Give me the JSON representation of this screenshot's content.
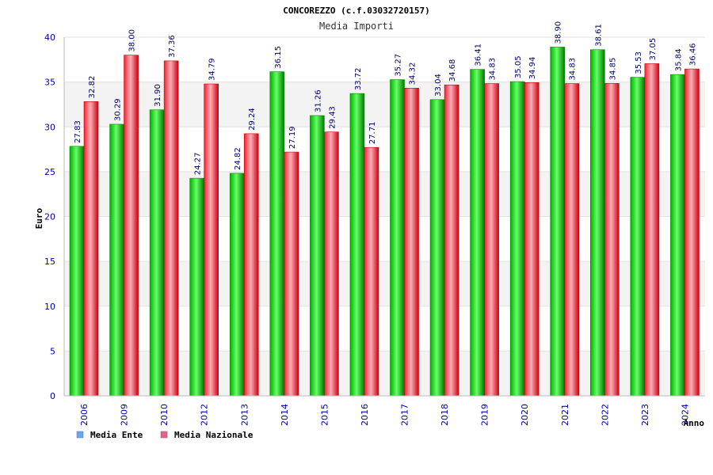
{
  "chart_data": {
    "type": "bar",
    "title": "CONCOREZZO (c.f.03032720157)",
    "subtitle": "Media Importi",
    "xlabel": "Anno",
    "ylabel": "Euro",
    "ylim": [
      0,
      40
    ],
    "yticks": [
      "0",
      "5",
      "10",
      "15",
      "20",
      "25",
      "30",
      "35",
      "40"
    ],
    "categories": [
      "2006",
      "2009",
      "2010",
      "2012",
      "2013",
      "2014",
      "2015",
      "2016",
      "2017",
      "2018",
      "2019",
      "2020",
      "2021",
      "2022",
      "2023",
      "2024"
    ],
    "series": [
      {
        "name": "Media Ente",
        "values": [
          27.83,
          30.29,
          31.9,
          24.27,
          24.82,
          36.15,
          31.26,
          33.72,
          35.27,
          33.04,
          36.41,
          35.05,
          38.9,
          38.61,
          35.53,
          35.84
        ],
        "labels": [
          "27.83",
          "30.29",
          "31.90",
          "24.27",
          "24.82",
          "36.15",
          "31.26",
          "33.72",
          "35.27",
          "33.04",
          "36.41",
          "35.05",
          "38.90",
          "38.61",
          "35.53",
          "35.84"
        ]
      },
      {
        "name": "Media Nazionale",
        "values": [
          32.82,
          38.0,
          37.36,
          34.79,
          29.24,
          27.19,
          29.43,
          27.71,
          34.32,
          34.68,
          34.83,
          34.94,
          34.83,
          34.85,
          37.05,
          36.46
        ],
        "labels": [
          "32.82",
          "38.00",
          "37.36",
          "34.79",
          "29.24",
          "27.19",
          "29.43",
          "27.71",
          "34.32",
          "34.68",
          "34.83",
          "34.94",
          "34.83",
          "34.85",
          "37.05",
          "36.46"
        ]
      }
    ],
    "grid": true,
    "legend_position": "bottom-left",
    "colors": {
      "ente": "#00cc00",
      "nazionale": "#ee3344",
      "legend_ente": "#66aaee",
      "legend_nazionale": "#dd6688",
      "tick_text": "#0000aa",
      "plot_band": "#f4f4f4"
    }
  }
}
